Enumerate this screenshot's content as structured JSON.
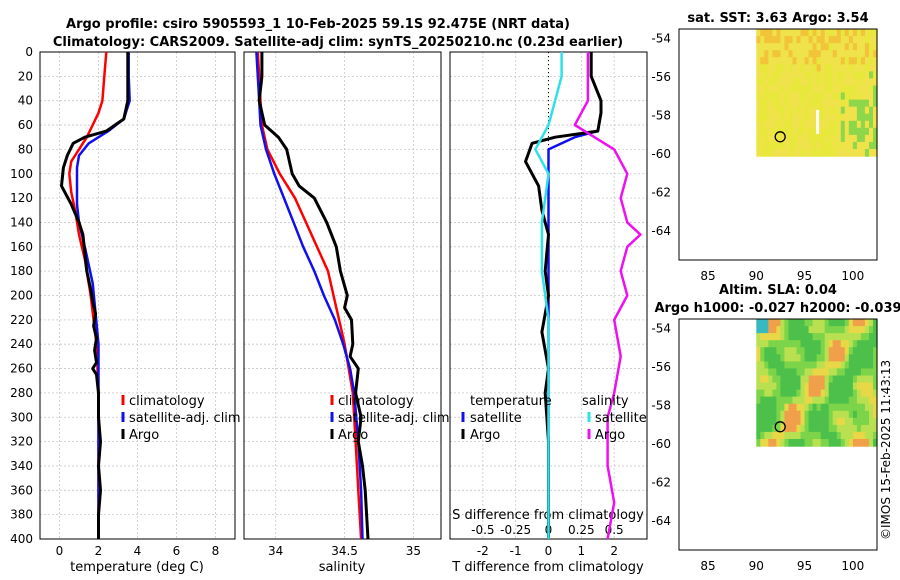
{
  "title_line1": "Argo profile: csiro 5905593_1 10-Feb-2025 59.1S 92.475E (NRT data)",
  "title_line2": "Climatology: CARS2009. Satellite-adj clim: synTS_20250210.nc (0.23d earlier)",
  "credit": "©IMOS 15-Feb-2025 11:43:13",
  "colors": {
    "climatology": "#ff0000",
    "satellite": "#1010ee",
    "argo": "#000000",
    "sat_sal": "#30e0e8",
    "argo_sal": "#ee10ee"
  },
  "chart_data": [
    {
      "id": "temperature",
      "type": "line",
      "xlabel": "temperature (deg C)",
      "xlim": [
        -1,
        9
      ],
      "ylim": [
        0,
        400
      ],
      "xticks": [
        0,
        2,
        4,
        6,
        8
      ],
      "yticks": [
        0,
        20,
        40,
        60,
        80,
        100,
        120,
        140,
        160,
        180,
        200,
        220,
        240,
        260,
        280,
        300,
        320,
        340,
        360,
        380,
        400
      ],
      "legend": [
        "climatology",
        "satellite-adj. clim",
        "Argo"
      ],
      "series": [
        {
          "name": "climatology",
          "x": [
            2.4,
            2.3,
            2.2,
            2.0,
            1.7,
            1.4,
            1.0,
            0.6,
            0.5,
            0.6,
            0.8,
            1.0,
            1.3,
            1.6,
            1.9,
            2.0,
            2.0,
            2.0,
            2.0,
            2.0
          ],
          "y": [
            0,
            20,
            40,
            50,
            60,
            70,
            80,
            90,
            100,
            115,
            130,
            150,
            170,
            200,
            240,
            280,
            320,
            360,
            380,
            400
          ]
        },
        {
          "name": "satellite-adj. clim",
          "x": [
            3.55,
            3.55,
            3.6,
            3.3,
            2.5,
            1.5,
            1.0,
            0.9,
            0.9,
            0.9,
            1.0,
            1.3,
            1.7,
            2.0,
            2.0,
            2.0,
            2.0,
            2.0
          ],
          "y": [
            0,
            20,
            40,
            55,
            65,
            75,
            85,
            95,
            110,
            125,
            140,
            160,
            190,
            240,
            280,
            320,
            360,
            400
          ]
        },
        {
          "name": "Argo",
          "x": [
            3.5,
            3.5,
            3.5,
            3.3,
            2.4,
            1.3,
            0.7,
            0.4,
            0.2,
            0.1,
            0.6,
            1.0,
            1.2,
            1.3,
            1.4,
            1.6,
            1.7,
            1.85,
            1.75,
            1.9,
            1.8,
            1.9,
            1.7,
            1.9,
            2.0,
            2.0,
            2.1,
            2.0,
            2.1,
            2.0,
            2.0
          ],
          "y": [
            0,
            20,
            40,
            55,
            65,
            70,
            75,
            85,
            95,
            110,
            125,
            140,
            150,
            165,
            180,
            195,
            205,
            215,
            225,
            235,
            245,
            255,
            260,
            265,
            280,
            300,
            320,
            340,
            360,
            380,
            400
          ]
        }
      ]
    },
    {
      "id": "salinity",
      "type": "line",
      "xlabel": "salinity",
      "xlim": [
        33.77,
        35.2
      ],
      "ylim": [
        0,
        400
      ],
      "xticks": [
        34,
        34.5,
        35
      ],
      "legend": [
        "climatology",
        "satellite-adj. clim",
        "Argo"
      ],
      "series": [
        {
          "name": "climatology",
          "x": [
            33.87,
            33.88,
            33.89,
            33.9,
            33.94,
            34.03,
            34.14,
            34.22,
            34.3,
            34.38,
            34.42,
            34.46,
            34.5,
            34.53,
            34.56,
            34.58,
            34.6,
            34.62
          ],
          "y": [
            0,
            20,
            40,
            60,
            80,
            100,
            120,
            140,
            160,
            180,
            200,
            220,
            240,
            260,
            280,
            320,
            360,
            400
          ]
        },
        {
          "name": "satellite-adj. clim",
          "x": [
            33.86,
            33.87,
            33.88,
            33.89,
            33.93,
            33.99,
            34.06,
            34.13,
            34.2,
            34.28,
            34.35,
            34.43,
            34.49,
            34.54,
            34.57,
            34.6,
            34.62,
            34.63
          ],
          "y": [
            0,
            20,
            40,
            60,
            80,
            100,
            120,
            140,
            160,
            180,
            200,
            220,
            240,
            260,
            280,
            320,
            360,
            400
          ]
        },
        {
          "name": "Argo",
          "x": [
            33.9,
            33.9,
            33.88,
            33.92,
            34.02,
            34.08,
            34.12,
            34.17,
            34.28,
            34.37,
            34.44,
            34.47,
            34.52,
            34.5,
            34.55,
            34.56,
            34.54,
            34.6,
            34.58,
            34.62,
            34.6,
            34.63,
            34.65,
            34.66,
            34.67
          ],
          "y": [
            0,
            20,
            40,
            60,
            70,
            80,
            100,
            110,
            120,
            140,
            160,
            180,
            200,
            210,
            220,
            240,
            250,
            260,
            280,
            300,
            320,
            340,
            360,
            380,
            400
          ]
        }
      ]
    },
    {
      "id": "difference",
      "type": "line",
      "xlabel": "T difference from climatology",
      "xlabel_top": "S difference from climatology",
      "xlim": [
        -3,
        3
      ],
      "ylim": [
        0,
        400
      ],
      "xticks": [
        -2,
        -1,
        0,
        1,
        2
      ],
      "xticks_top": [
        "-0.5",
        "-0.25",
        "0",
        "0.25",
        "0.5"
      ],
      "legend_left_title": "temperature",
      "legend_right_title": "salinity",
      "legend_left": [
        "satellite",
        "Argo"
      ],
      "legend_right": [
        "satellite",
        "Argo"
      ],
      "series": [
        {
          "name": "T satellite",
          "x": [
            1.3,
            1.3,
            1.6,
            1.6,
            1.5,
            0.8,
            0.0,
            0.0,
            0.0,
            0.0,
            0.0,
            0.0,
            0.0,
            0.0,
            0.0
          ],
          "y": [
            0,
            20,
            40,
            50,
            65,
            70,
            80,
            100,
            140,
            180,
            220,
            260,
            300,
            360,
            400
          ]
        },
        {
          "name": "T Argo",
          "x": [
            1.3,
            1.3,
            1.6,
            1.6,
            1.5,
            0.2,
            -0.5,
            -0.7,
            -0.3,
            -0.2,
            0.0,
            -0.1,
            0.0,
            -0.2,
            0.0,
            -0.1,
            0.0,
            0.0,
            0.0
          ],
          "y": [
            0,
            20,
            40,
            50,
            65,
            70,
            75,
            90,
            110,
            130,
            150,
            180,
            200,
            230,
            260,
            280,
            320,
            360,
            400
          ]
        },
        {
          "name": "S satellite",
          "x": [
            0.1,
            0.1,
            0.05,
            0.0,
            -0.1,
            0.0,
            -0.05,
            -0.05,
            0.0,
            0.0,
            0.0,
            0.0,
            0.0,
            0.0
          ],
          "y": [
            0,
            20,
            40,
            60,
            80,
            100,
            140,
            180,
            220,
            260,
            300,
            340,
            380,
            400
          ]
        },
        {
          "name": "S Argo",
          "x": [
            0.3,
            0.3,
            0.3,
            0.2,
            0.5,
            0.6,
            0.55,
            0.6,
            0.7,
            0.6,
            0.55,
            0.6,
            0.5,
            0.55,
            0.5,
            0.45,
            0.45,
            0.5,
            0.45
          ],
          "y": [
            0,
            20,
            40,
            60,
            80,
            100,
            120,
            140,
            150,
            160,
            180,
            200,
            220,
            250,
            280,
            300,
            340,
            370,
            400
          ]
        }
      ]
    },
    {
      "id": "sst_map",
      "type": "heatmap",
      "title": "sat. SST: 3.63 Argo: 3.54",
      "xlim": [
        82,
        102.5
      ],
      "ylim": [
        -65.5,
        -53.5
      ],
      "xticks": [
        85,
        90,
        95,
        100
      ],
      "yticks": [
        -54,
        -56,
        -58,
        -60,
        -62,
        -64
      ],
      "data_extent": {
        "lon": [
          90,
          102.5
        ],
        "lat": [
          -60.1,
          -53.5
        ]
      },
      "float": {
        "lon": 92.475,
        "lat": -59.1
      }
    },
    {
      "id": "sla_map",
      "type": "heatmap",
      "title_line1": "Altim. SLA: 0.04",
      "title_line2": "Argo h1000: -0.027 h2000: -0.039",
      "xlim": [
        82,
        102.5
      ],
      "ylim": [
        -65.5,
        -53.5
      ],
      "xticks": [
        85,
        90,
        95,
        100
      ],
      "yticks": [
        -54,
        -56,
        -58,
        -60,
        -62,
        -64
      ],
      "data_extent": {
        "lon": [
          90,
          102.5
        ],
        "lat": [
          -60.1,
          -53.5
        ]
      },
      "float": {
        "lon": 92.475,
        "lat": -59.1
      }
    }
  ]
}
